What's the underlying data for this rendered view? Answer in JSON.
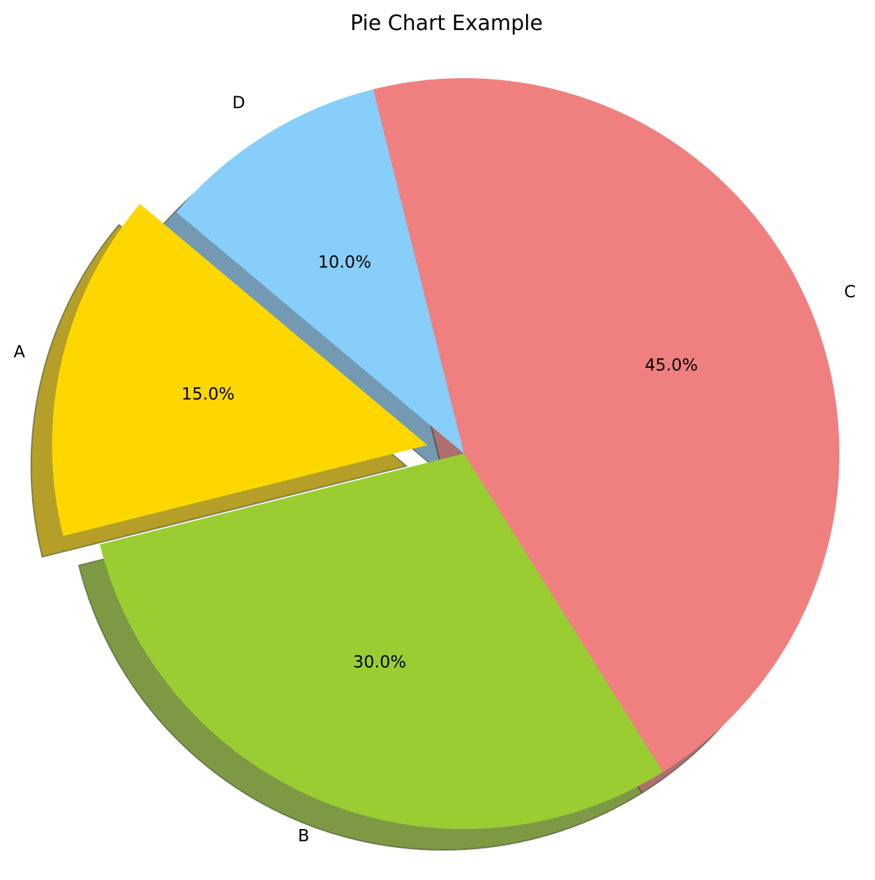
{
  "chart_data": {
    "type": "pie",
    "title": "Pie Chart Example",
    "slices": [
      {
        "label": "A",
        "value": 15,
        "pct_label": "15.0%",
        "color": "#ffd700",
        "explode": 0.1
      },
      {
        "label": "B",
        "value": 30,
        "pct_label": "30.0%",
        "color": "#9acd32",
        "explode": 0
      },
      {
        "label": "C",
        "value": 45,
        "pct_label": "45.0%",
        "color": "#f08080",
        "explode": 0
      },
      {
        "label": "D",
        "value": 10,
        "pct_label": "10.0%",
        "color": "#87cefa",
        "explode": 0
      }
    ],
    "start_angle": 140,
    "shadow": true,
    "legend": "none"
  }
}
